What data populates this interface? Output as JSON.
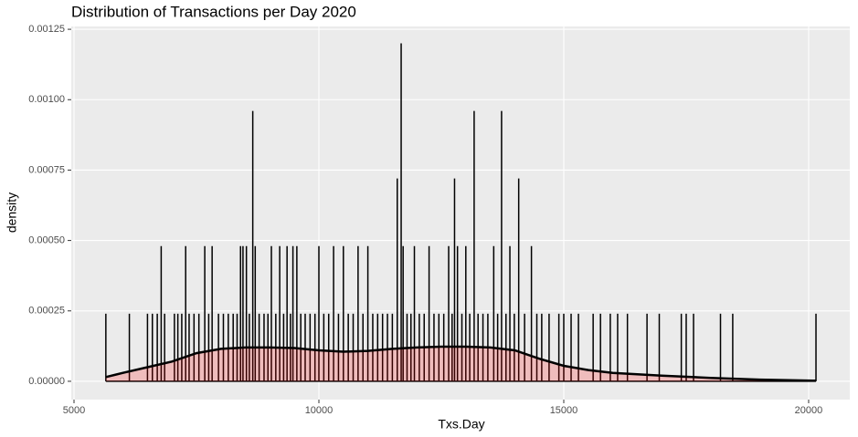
{
  "chart_data": {
    "type": "histogram",
    "title": "Distribution of Transactions per Day 2020",
    "x_label": "Txs.Day",
    "y_label": "density",
    "xlim": [
      4944,
      20840
    ],
    "ylim": [
      -6.5e-05,
      0.00126
    ],
    "xticks": [
      5000,
      10000,
      15000,
      20000
    ],
    "yticks": [
      {
        "value": 0,
        "label": "0.00000"
      },
      {
        "value": 0.00025,
        "label": "0.00025"
      },
      {
        "value": 0.0005,
        "label": "0.00050"
      },
      {
        "value": 0.00075,
        "label": "0.00075"
      },
      {
        "value": 0.001,
        "label": "0.00100"
      },
      {
        "value": 0.00125,
        "label": "0.00125"
      }
    ],
    "grid": true,
    "color": "#000000",
    "spikes": {
      "x": [
        5650,
        6130,
        6500,
        6600,
        6700,
        6780,
        6850,
        7050,
        7120,
        7200,
        7280,
        7350,
        7450,
        7550,
        7670,
        7750,
        7820,
        7950,
        8050,
        8150,
        8250,
        8330,
        8400,
        8450,
        8520,
        8580,
        8650,
        8700,
        8780,
        8880,
        8960,
        9030,
        9120,
        9200,
        9280,
        9350,
        9420,
        9470,
        9550,
        9630,
        9720,
        9820,
        9920,
        10000,
        10100,
        10200,
        10300,
        10400,
        10500,
        10600,
        10700,
        10800,
        10900,
        11000,
        11100,
        11200,
        11300,
        11400,
        11500,
        11600,
        11680,
        11720,
        11800,
        11880,
        11950,
        12050,
        12150,
        12250,
        12350,
        12450,
        12550,
        12650,
        12720,
        12770,
        12830,
        12920,
        13000,
        13080,
        13170,
        13250,
        13350,
        13450,
        13570,
        13650,
        13730,
        13820,
        13900,
        13990,
        14080,
        14200,
        14340,
        14450,
        14550,
        14700,
        14900,
        15000,
        15150,
        15300,
        15600,
        15750,
        15950,
        16100,
        16300,
        16700,
        16950,
        17400,
        17500,
        17650,
        18200,
        18450,
        20150
      ],
      "values": [
        0.00024,
        0.00024,
        0.00024,
        0.00024,
        0.00024,
        0.00048,
        0.00024,
        0.00024,
        0.00024,
        0.00024,
        0.00048,
        0.00024,
        0.00024,
        0.00024,
        0.00048,
        0.00024,
        0.00048,
        0.00024,
        0.00024,
        0.00024,
        0.00024,
        0.00024,
        0.00048,
        0.00048,
        0.00048,
        0.00024,
        0.00096,
        0.00048,
        0.00024,
        0.00024,
        0.00024,
        0.00048,
        0.00024,
        0.00048,
        0.00024,
        0.00048,
        0.00024,
        0.00048,
        0.00048,
        0.00024,
        0.00024,
        0.00024,
        0.00024,
        0.00048,
        0.00024,
        0.00024,
        0.00048,
        0.00024,
        0.00048,
        0.00024,
        0.00024,
        0.00048,
        0.00024,
        0.00048,
        0.00024,
        0.00024,
        0.00024,
        0.00024,
        0.00024,
        0.00072,
        0.0012,
        0.00048,
        0.00024,
        0.00024,
        0.00048,
        0.00024,
        0.00024,
        0.00048,
        0.00024,
        0.00024,
        0.00024,
        0.00048,
        0.00024,
        0.00072,
        0.00048,
        0.00024,
        0.00048,
        0.00024,
        0.00096,
        0.00024,
        0.00024,
        0.00024,
        0.00048,
        0.00024,
        0.00096,
        0.00024,
        0.00048,
        0.00024,
        0.00072,
        0.00024,
        0.00048,
        0.00024,
        0.00024,
        0.00024,
        0.00024,
        0.00024,
        0.00024,
        0.00024,
        0.00024,
        0.00024,
        0.00024,
        0.00024,
        0.00024,
        0.00024,
        0.00024,
        0.00024,
        0.00024,
        0.00024,
        0.00024,
        0.00024,
        0.00024
      ]
    },
    "density": {
      "color": "#ff0000",
      "x": [
        5650,
        6000,
        6500,
        7000,
        7500,
        8000,
        8500,
        9000,
        9500,
        10000,
        10500,
        11000,
        11500,
        12000,
        12500,
        13000,
        13500,
        14000,
        14500,
        15000,
        15500,
        16000,
        17000,
        18000,
        19000,
        20150
      ],
      "values": [
        1.5e-05,
        3e-05,
        5e-05,
        7e-05,
        0.0001,
        0.000115,
        0.00012,
        0.00012,
        0.000118,
        0.00011,
        0.000105,
        0.000108,
        0.000115,
        0.00012,
        0.000123,
        0.000123,
        0.00012,
        0.00011,
        8e-05,
        5.5e-05,
        4e-05,
        3e-05,
        2e-05,
        1.2e-05,
        6e-06,
        2e-06
      ]
    }
  }
}
